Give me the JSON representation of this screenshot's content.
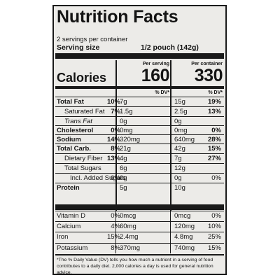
{
  "title": "Nutrition Facts",
  "servings_per_container": "2 servings per container",
  "serving_size_label": "Serving size",
  "serving_size_value": "1/2 pouch (142g)",
  "columns": {
    "per_serving": "Per serving",
    "per_container": "Per container",
    "dv": "% DV*"
  },
  "calories": {
    "label": "Calories",
    "per_serving": "160",
    "per_container": "330"
  },
  "rows": [
    {
      "label": "Total Fat",
      "style": "bold",
      "ps_qty": "7g",
      "ps_dv": "10%",
      "pc_qty": "15g",
      "pc_dv": "19%"
    },
    {
      "label": "Saturated Fat",
      "style": "indent",
      "ps_qty": "1.5g",
      "ps_dv": "7%",
      "pc_qty": "2.5g",
      "pc_dv": "13%"
    },
    {
      "label": "Trans Fat",
      "style": "indent-italic",
      "ps_qty": "0g",
      "ps_dv": "",
      "pc_qty": "0g",
      "pc_dv": ""
    },
    {
      "label": "Cholesterol",
      "style": "bold",
      "ps_qty": "0mg",
      "ps_dv": "0%",
      "pc_qty": "0mg",
      "pc_dv": "0%"
    },
    {
      "label": "Sodium",
      "style": "bold",
      "ps_qty": "320mg",
      "ps_dv": "14%",
      "pc_qty": "640mg",
      "pc_dv": "28%"
    },
    {
      "label": "Total Carb.",
      "style": "bold",
      "ps_qty": "21g",
      "ps_dv": "8%",
      "pc_qty": "42g",
      "pc_dv": "15%"
    },
    {
      "label": "Dietary Fiber",
      "style": "indent",
      "ps_qty": "4g",
      "ps_dv": "13%",
      "pc_qty": "7g",
      "pc_dv": "27%"
    },
    {
      "label": "Total Sugars",
      "style": "indent",
      "ps_qty": "6g",
      "ps_dv": "",
      "pc_qty": "12g",
      "pc_dv": ""
    },
    {
      "label": "Incl. Added Sugars",
      "style": "indent2",
      "ps_qty": "0g",
      "ps_dv": "0%",
      "pc_qty": "0g",
      "pc_dv": "0%"
    },
    {
      "label": "Protein",
      "style": "bold",
      "ps_qty": "5g",
      "ps_dv": "",
      "pc_qty": "10g",
      "pc_dv": ""
    }
  ],
  "vitamins": [
    {
      "label": "Vitamin D",
      "ps_qty": "0mcg",
      "ps_dv": "0%",
      "pc_qty": "0mcg",
      "pc_dv": "0%"
    },
    {
      "label": "Calcium",
      "ps_qty": "60mg",
      "ps_dv": "4%",
      "pc_qty": "120mg",
      "pc_dv": "10%"
    },
    {
      "label": "Iron",
      "ps_qty": "2.4mg",
      "ps_dv": "15%",
      "pc_qty": "4.8mg",
      "pc_dv": "25%"
    },
    {
      "label": "Potassium",
      "ps_qty": "370mg",
      "ps_dv": "8%",
      "pc_qty": "740mg",
      "pc_dv": "15%"
    }
  ],
  "footnote": "*The % Daily Value (DV) tells you how much a nutrient in a serving of food contributes to a daily diet. 2,000 calories a day is used for general nutrition advice."
}
